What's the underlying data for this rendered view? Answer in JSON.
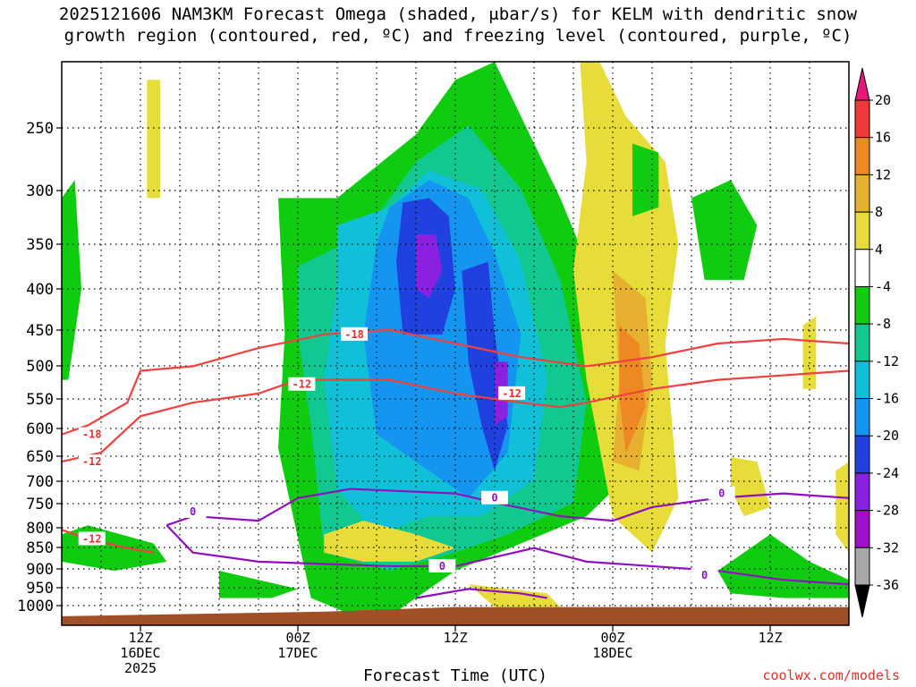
{
  "title": {
    "line1": "2025121606 NAM3KM Forecast Omega (shaded, μbar/s) for KELM with dendritic snow",
    "line2": "growth region (contoured, red, ºC) and freezing level (contoured, purple, ºC)"
  },
  "credit": "coolwx.com/models",
  "chart_data": {
    "type": "heatmap",
    "title": "2025121606 NAM3KM Forecast Omega (shaded, μbar/s) for KELM with dendritic snow growth region (contoured, red, ºC) and freezing level (contoured, purple, ºC)",
    "xlabel": "Forecast Time (UTC)",
    "ylabel": "",
    "x_unit": "forecast hour",
    "xlim": [
      0,
      60
    ],
    "y_unit": "hPa",
    "ylim": [
      1000,
      180
    ],
    "y_scale": "pressure (log-like)",
    "grid": "dotted",
    "y_ticks": [
      250,
      300,
      350,
      400,
      450,
      500,
      550,
      600,
      650,
      700,
      750,
      800,
      850,
      900,
      950,
      1000
    ],
    "x_ticks": [
      {
        "hour": 6,
        "lines": [
          "12Z",
          "16DEC",
          "2025"
        ]
      },
      {
        "hour": 18,
        "lines": [
          "00Z",
          "17DEC",
          ""
        ]
      },
      {
        "hour": 30,
        "lines": [
          "12Z",
          "",
          ""
        ]
      },
      {
        "hour": 42,
        "lines": [
          "00Z",
          "18DEC",
          ""
        ]
      },
      {
        "hour": 54,
        "lines": [
          "12Z",
          "",
          ""
        ]
      }
    ],
    "colorbar": {
      "unit": "μbar/s",
      "levels": [
        20,
        16,
        12,
        8,
        4,
        -4,
        -8,
        -12,
        -16,
        -20,
        -24,
        -28,
        -32,
        -36
      ],
      "colors": [
        "#e8177a",
        "#f03a3a",
        "#ee8822",
        "#e8b030",
        "#e8dc3a",
        "#ffffff",
        "#10cc10",
        "#10c890",
        "#10c0d8",
        "#1496f0",
        "#2040e0",
        "#8a20e0",
        "#a010c8",
        "#a8a8a8",
        "#000000"
      ]
    },
    "shaded_regions": [
      {
        "value": -6,
        "color": "#10cc10",
        "t": [
          [
            16.5,
            30
          ],
          [
            21,
            30
          ],
          [
            27,
            16
          ],
          [
            30,
            4
          ],
          [
            33,
            0
          ],
          [
            35,
            12
          ],
          [
            38,
            30
          ],
          [
            42,
            58
          ],
          [
            45,
            86
          ],
          [
            40,
            100
          ],
          [
            30,
            112
          ],
          [
            24,
            124
          ],
          [
            19,
            118
          ],
          [
            16.5,
            85
          ],
          [
            17,
            60
          ]
        ]
      },
      {
        "value": -10,
        "color": "#10c890",
        "t": [
          [
            18,
            45
          ],
          [
            23,
            38
          ],
          [
            27,
            22
          ],
          [
            31,
            14
          ],
          [
            35,
            28
          ],
          [
            38,
            48
          ],
          [
            40,
            75
          ],
          [
            39,
            97
          ],
          [
            34,
            104
          ],
          [
            30,
            108
          ],
          [
            25,
            112
          ],
          [
            20,
            108
          ],
          [
            19,
            80
          ],
          [
            18,
            60
          ]
        ]
      },
      {
        "value": -14,
        "color": "#10c0d8",
        "t": [
          [
            21,
            36
          ],
          [
            25,
            32
          ],
          [
            28,
            24
          ],
          [
            32,
            28
          ],
          [
            35,
            44
          ],
          [
            37,
            70
          ],
          [
            36,
            92
          ],
          [
            32,
            100
          ],
          [
            28,
            100
          ],
          [
            24,
            104
          ],
          [
            21,
            94
          ],
          [
            20,
            70
          ],
          [
            21,
            50
          ]
        ]
      },
      {
        "value": -18,
        "color": "#1496f0",
        "t": [
          [
            25,
            32
          ],
          [
            28,
            26
          ],
          [
            31,
            30
          ],
          [
            33,
            42
          ],
          [
            35,
            60
          ],
          [
            34,
            86
          ],
          [
            31,
            96
          ],
          [
            28,
            90
          ],
          [
            24,
            82
          ],
          [
            23,
            60
          ],
          [
            24,
            40
          ]
        ]
      },
      {
        "value": -22,
        "color": "#2040e0",
        "t": [
          [
            26,
            31
          ],
          [
            28,
            30
          ],
          [
            29.5,
            34
          ],
          [
            30,
            50
          ],
          [
            29,
            60
          ],
          [
            26,
            60
          ],
          [
            25.5,
            44
          ]
        ]
      },
      {
        "value": -22,
        "color": "#2040e0",
        "t": [
          [
            30.5,
            46
          ],
          [
            32.5,
            44
          ],
          [
            33,
            60
          ],
          [
            34,
            80
          ],
          [
            33,
            90
          ],
          [
            32,
            80
          ],
          [
            31,
            66
          ]
        ]
      },
      {
        "value": -26,
        "color": "#8a20e0",
        "t": [
          [
            27,
            38
          ],
          [
            28.5,
            38
          ],
          [
            29,
            46
          ],
          [
            28,
            52
          ],
          [
            27,
            50
          ]
        ]
      },
      {
        "value": -26,
        "color": "#8a20e0",
        "t": [
          [
            33,
            66
          ],
          [
            34,
            66
          ],
          [
            34,
            78
          ],
          [
            33,
            80
          ],
          [
            33,
            72
          ]
        ]
      },
      {
        "value": 6,
        "color": "#e8dc3a",
        "t": [
          [
            39.5,
            0
          ],
          [
            41,
            0
          ],
          [
            43,
            12
          ],
          [
            46,
            22
          ],
          [
            47,
            40
          ],
          [
            46,
            62
          ],
          [
            47,
            96
          ],
          [
            45,
            108
          ],
          [
            42,
            100
          ],
          [
            40,
            70
          ],
          [
            39,
            46
          ],
          [
            40,
            22
          ]
        ]
      },
      {
        "value": 10,
        "color": "#e8b030",
        "t": [
          [
            42,
            46
          ],
          [
            44.5,
            52
          ],
          [
            45,
            70
          ],
          [
            44,
            90
          ],
          [
            42,
            88
          ],
          [
            42.5,
            70
          ]
        ]
      },
      {
        "value": 14,
        "color": "#ee8822",
        "t": [
          [
            42.5,
            58
          ],
          [
            44,
            62
          ],
          [
            44.5,
            76
          ],
          [
            43,
            86
          ],
          [
            42.5,
            74
          ]
        ]
      },
      {
        "value": -6,
        "color": "#10cc10",
        "t": [
          [
            43.5,
            18
          ],
          [
            45.5,
            20
          ],
          [
            45.5,
            32
          ],
          [
            43.5,
            34
          ]
        ]
      },
      {
        "value": -6,
        "color": "#10cc10",
        "t": [
          [
            48,
            30
          ],
          [
            51,
            26
          ],
          [
            53,
            36
          ],
          [
            52,
            48
          ],
          [
            49,
            48
          ]
        ]
      },
      {
        "value": -6,
        "color": "#10cc10",
        "t": [
          [
            0,
            30
          ],
          [
            1,
            26
          ],
          [
            1.5,
            50
          ],
          [
            0.5,
            70
          ],
          [
            0,
            70
          ]
        ]
      },
      {
        "value": -6,
        "color": "#10cc10",
        "t": [
          [
            0,
            104
          ],
          [
            2,
            102
          ],
          [
            7,
            106
          ],
          [
            8,
            110
          ],
          [
            4,
            112
          ],
          [
            0,
            110
          ]
        ]
      },
      {
        "value": -6,
        "color": "#10cc10",
        "t": [
          [
            12,
            112
          ],
          [
            15,
            114
          ],
          [
            18,
            116
          ],
          [
            16,
            118
          ],
          [
            12,
            118
          ]
        ]
      },
      {
        "value": -6,
        "color": "#10cc10",
        "t": [
          [
            50,
            112
          ],
          [
            54,
            104
          ],
          [
            57,
            110
          ],
          [
            60,
            114
          ],
          [
            60,
            118
          ],
          [
            55,
            118
          ],
          [
            51,
            117
          ]
        ]
      },
      {
        "value": 6,
        "color": "#e8dc3a",
        "t": [
          [
            20,
            104
          ],
          [
            23,
            101
          ],
          [
            27,
            104
          ],
          [
            30,
            107
          ],
          [
            27,
            110
          ],
          [
            23,
            110
          ],
          [
            20,
            108
          ]
        ]
      },
      {
        "value": 6,
        "color": "#e8dc3a",
        "t": [
          [
            31,
            115
          ],
          [
            37,
            117
          ],
          [
            38,
            120
          ],
          [
            33,
            120
          ]
        ]
      },
      {
        "value": 6,
        "color": "#e8dc3a",
        "t": [
          [
            6.5,
            4
          ],
          [
            7.5,
            4
          ],
          [
            7.5,
            30
          ],
          [
            6.5,
            30
          ]
        ]
      },
      {
        "value": 6,
        "color": "#e8dc3a",
        "t": [
          [
            59,
            90
          ],
          [
            60,
            88
          ],
          [
            60,
            108
          ],
          [
            59,
            104
          ]
        ]
      },
      {
        "value": 6,
        "color": "#e8dc3a",
        "t": [
          [
            51,
            87
          ],
          [
            53,
            88
          ],
          [
            54,
            98
          ],
          [
            52,
            100
          ],
          [
            51,
            94
          ]
        ]
      },
      {
        "value": 6,
        "color": "#e8dc3a",
        "t": [
          [
            56.5,
            58
          ],
          [
            57.5,
            56
          ],
          [
            57.5,
            72
          ],
          [
            56.5,
            72
          ]
        ]
      }
    ],
    "contours_red_degC": [
      {
        "label": "-18",
        "points": [
          [
            0,
            82
          ],
          [
            2,
            80
          ],
          [
            5,
            75
          ],
          [
            6,
            68
          ],
          [
            10,
            67
          ],
          [
            15,
            63
          ],
          [
            20,
            60
          ],
          [
            25,
            59
          ],
          [
            30,
            62
          ],
          [
            35,
            65
          ],
          [
            40,
            67
          ],
          [
            45,
            65
          ],
          [
            50,
            62
          ],
          [
            55,
            61
          ],
          [
            60,
            62
          ]
        ]
      },
      {
        "label": "-12",
        "points": [
          [
            0,
            88
          ],
          [
            3,
            86
          ],
          [
            6,
            78
          ],
          [
            10,
            75
          ],
          [
            15,
            73
          ],
          [
            18,
            70
          ],
          [
            25,
            70
          ],
          [
            30,
            73
          ],
          [
            35,
            75
          ],
          [
            38,
            76
          ],
          [
            40,
            75
          ],
          [
            45,
            72
          ],
          [
            50,
            70
          ],
          [
            55,
            69
          ],
          [
            60,
            68
          ]
        ]
      },
      {
        "label": "-12",
        "points": [
          [
            0,
            103
          ],
          [
            2,
            105
          ],
          [
            5,
            107
          ],
          [
            7,
            108
          ]
        ]
      }
    ],
    "contours_purple_degC": [
      {
        "label": "0",
        "points": [
          [
            8,
            102
          ],
          [
            10,
            100
          ],
          [
            15,
            101
          ],
          [
            18,
            96
          ],
          [
            22,
            94
          ],
          [
            30,
            95
          ],
          [
            33,
            97
          ],
          [
            38,
            100
          ],
          [
            42,
            101
          ],
          [
            45,
            98
          ],
          [
            50,
            96
          ],
          [
            55,
            95
          ],
          [
            60,
            96
          ]
        ]
      },
      {
        "label": "0",
        "points": [
          [
            8,
            102
          ],
          [
            10,
            108
          ],
          [
            15,
            110
          ],
          [
            25,
            111
          ],
          [
            30,
            111
          ],
          [
            33,
            109
          ],
          [
            36,
            107
          ],
          [
            40,
            110
          ],
          [
            45,
            111
          ],
          [
            50,
            112
          ],
          [
            55,
            114
          ],
          [
            60,
            115
          ]
        ]
      },
      {
        "label": "0",
        "points": [
          [
            27,
            118
          ],
          [
            31,
            116
          ],
          [
            35,
            117
          ],
          [
            37,
            118
          ]
        ]
      }
    ],
    "contour_labels": [
      {
        "text": "-18",
        "color": "#e83030",
        "t": [
          2.3,
          82
        ]
      },
      {
        "text": "-18",
        "color": "#e83030",
        "t": [
          22.3,
          60
        ]
      },
      {
        "text": "-12",
        "color": "#e83030",
        "t": [
          2.3,
          88
        ]
      },
      {
        "text": "-12",
        "color": "#e83030",
        "t": [
          18.3,
          71
        ]
      },
      {
        "text": "-12",
        "color": "#e83030",
        "t": [
          34.3,
          73
        ]
      },
      {
        "text": "-12",
        "color": "#e83030",
        "t": [
          2.3,
          105
        ]
      },
      {
        "text": "0",
        "color": "#9010c0",
        "t": [
          10,
          99
        ]
      },
      {
        "text": "0",
        "color": "#9010c0",
        "t": [
          33,
          96
        ]
      },
      {
        "text": "0",
        "color": "#9010c0",
        "t": [
          50.3,
          95
        ]
      },
      {
        "text": "0",
        "color": "#9010c0",
        "t": [
          29,
          111
        ]
      },
      {
        "text": "0",
        "color": "#9010c0",
        "t": [
          49,
          113
        ]
      }
    ],
    "surface": {
      "color": "#a05028",
      "label": "terrain"
    }
  }
}
